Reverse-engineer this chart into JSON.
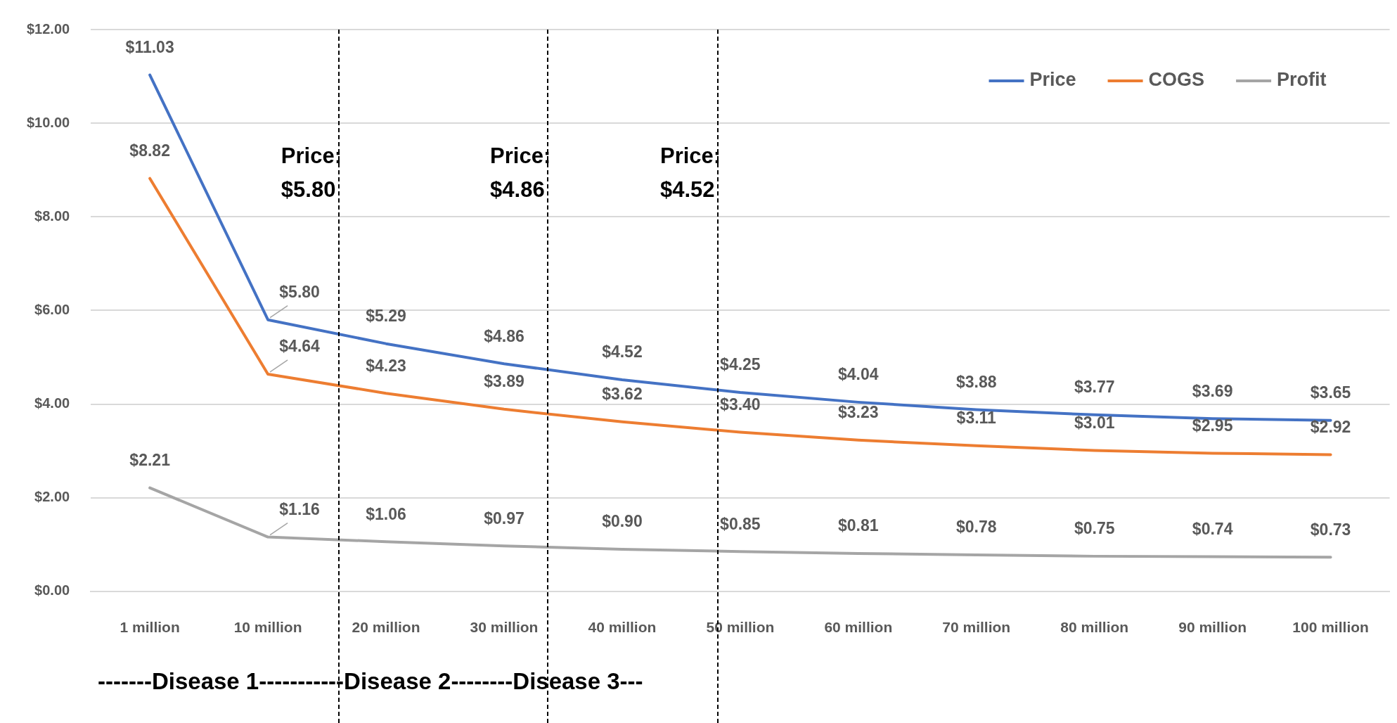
{
  "chart_data": {
    "type": "line",
    "categories": [
      "1 million",
      "10 million",
      "20 million",
      "30 million",
      "40 million",
      "50 million",
      "60 million",
      "70 million",
      "80 million",
      "90 million",
      "100 million"
    ],
    "series": [
      {
        "name": "Price",
        "color": "#4472c4",
        "values": [
          11.03,
          5.8,
          5.29,
          4.86,
          4.52,
          4.25,
          4.04,
          3.88,
          3.77,
          3.69,
          3.65
        ],
        "value_labels": [
          "$11.03",
          "$5.80",
          "$5.29",
          "$4.86",
          "$4.52",
          "$4.25",
          "$4.04",
          "$3.88",
          "$3.77",
          "$3.69",
          "$3.65"
        ]
      },
      {
        "name": "COGS",
        "color": "#ed7d31",
        "values": [
          8.82,
          4.64,
          4.23,
          3.89,
          3.62,
          3.4,
          3.23,
          3.11,
          3.01,
          2.95,
          2.92
        ],
        "value_labels": [
          "$8.82",
          "$4.64",
          "$4.23",
          "$3.89",
          "$3.62",
          "$3.40",
          "$3.23",
          "$3.11",
          "$3.01",
          "$2.95",
          "$2.92"
        ]
      },
      {
        "name": "Profit",
        "color": "#a5a5a5",
        "values": [
          2.21,
          1.16,
          1.06,
          0.97,
          0.9,
          0.85,
          0.81,
          0.78,
          0.75,
          0.74,
          0.73
        ],
        "value_labels": [
          "$2.21",
          "$1.16",
          "$1.06",
          "$0.97",
          "$0.90",
          "$0.85",
          "$0.81",
          "$0.78",
          "$0.75",
          "$0.74",
          "$0.73"
        ]
      }
    ],
    "ylim": [
      0,
      12
    ],
    "yticks": [
      {
        "value": 0,
        "label": "$0.00"
      },
      {
        "value": 2,
        "label": "$2.00"
      },
      {
        "value": 4,
        "label": "$4.00"
      },
      {
        "value": 6,
        "label": "$6.00"
      },
      {
        "value": 8,
        "label": "$8.00"
      },
      {
        "value": 10,
        "label": "$10.00"
      },
      {
        "value": 12,
        "label": "$12.00"
      }
    ],
    "grid": "y",
    "legend": "top right",
    "marker": "none",
    "line_style": "solid",
    "annotations": [
      "Price: $5.80",
      "Price: $4.86",
      "Price: $4.52",
      "-------Disease 1-----------Disease 2--------Disease 3---"
    ]
  }
}
